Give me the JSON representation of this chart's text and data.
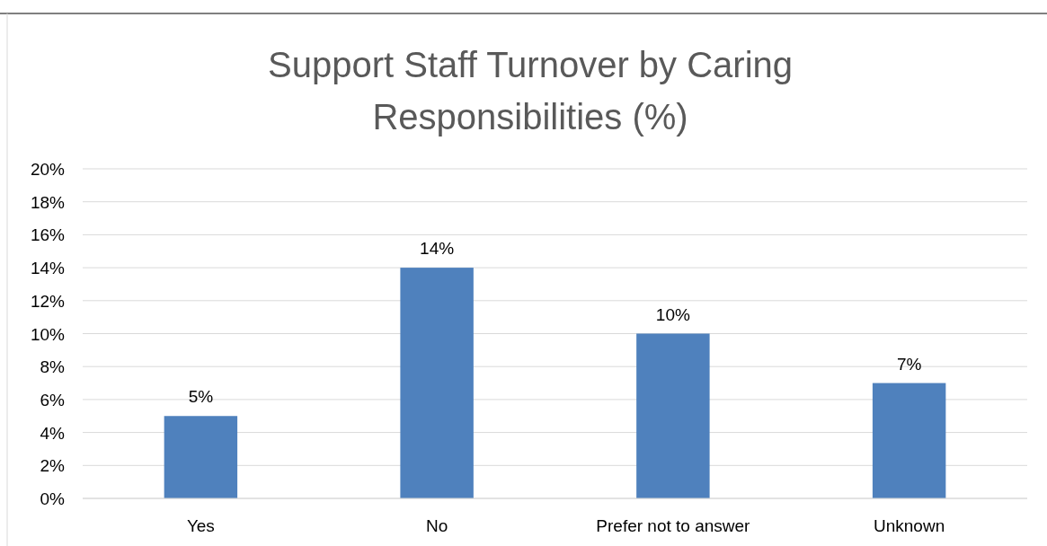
{
  "chart_data": {
    "type": "bar",
    "title": "Support Staff Turnover by Caring Responsibilities (%)",
    "categories": [
      "Yes",
      "No",
      "Prefer not to answer",
      "Unknown"
    ],
    "values": [
      5,
      14,
      10,
      7
    ],
    "value_labels": [
      "5%",
      "14%",
      "10%",
      "7%"
    ],
    "color": "#4f81bd",
    "ylim": [
      0,
      20
    ],
    "yticks": [
      {
        "value": 0,
        "label": "0%"
      },
      {
        "value": 2,
        "label": "2%"
      },
      {
        "value": 4,
        "label": "4%"
      },
      {
        "value": 6,
        "label": "6%"
      },
      {
        "value": 8,
        "label": "8%"
      },
      {
        "value": 10,
        "label": "10%"
      },
      {
        "value": 12,
        "label": "12%"
      },
      {
        "value": 14,
        "label": "14%"
      },
      {
        "value": 16,
        "label": "16%"
      },
      {
        "value": 18,
        "label": "18%"
      },
      {
        "value": 20,
        "label": "20%"
      }
    ],
    "grid": "y"
  }
}
